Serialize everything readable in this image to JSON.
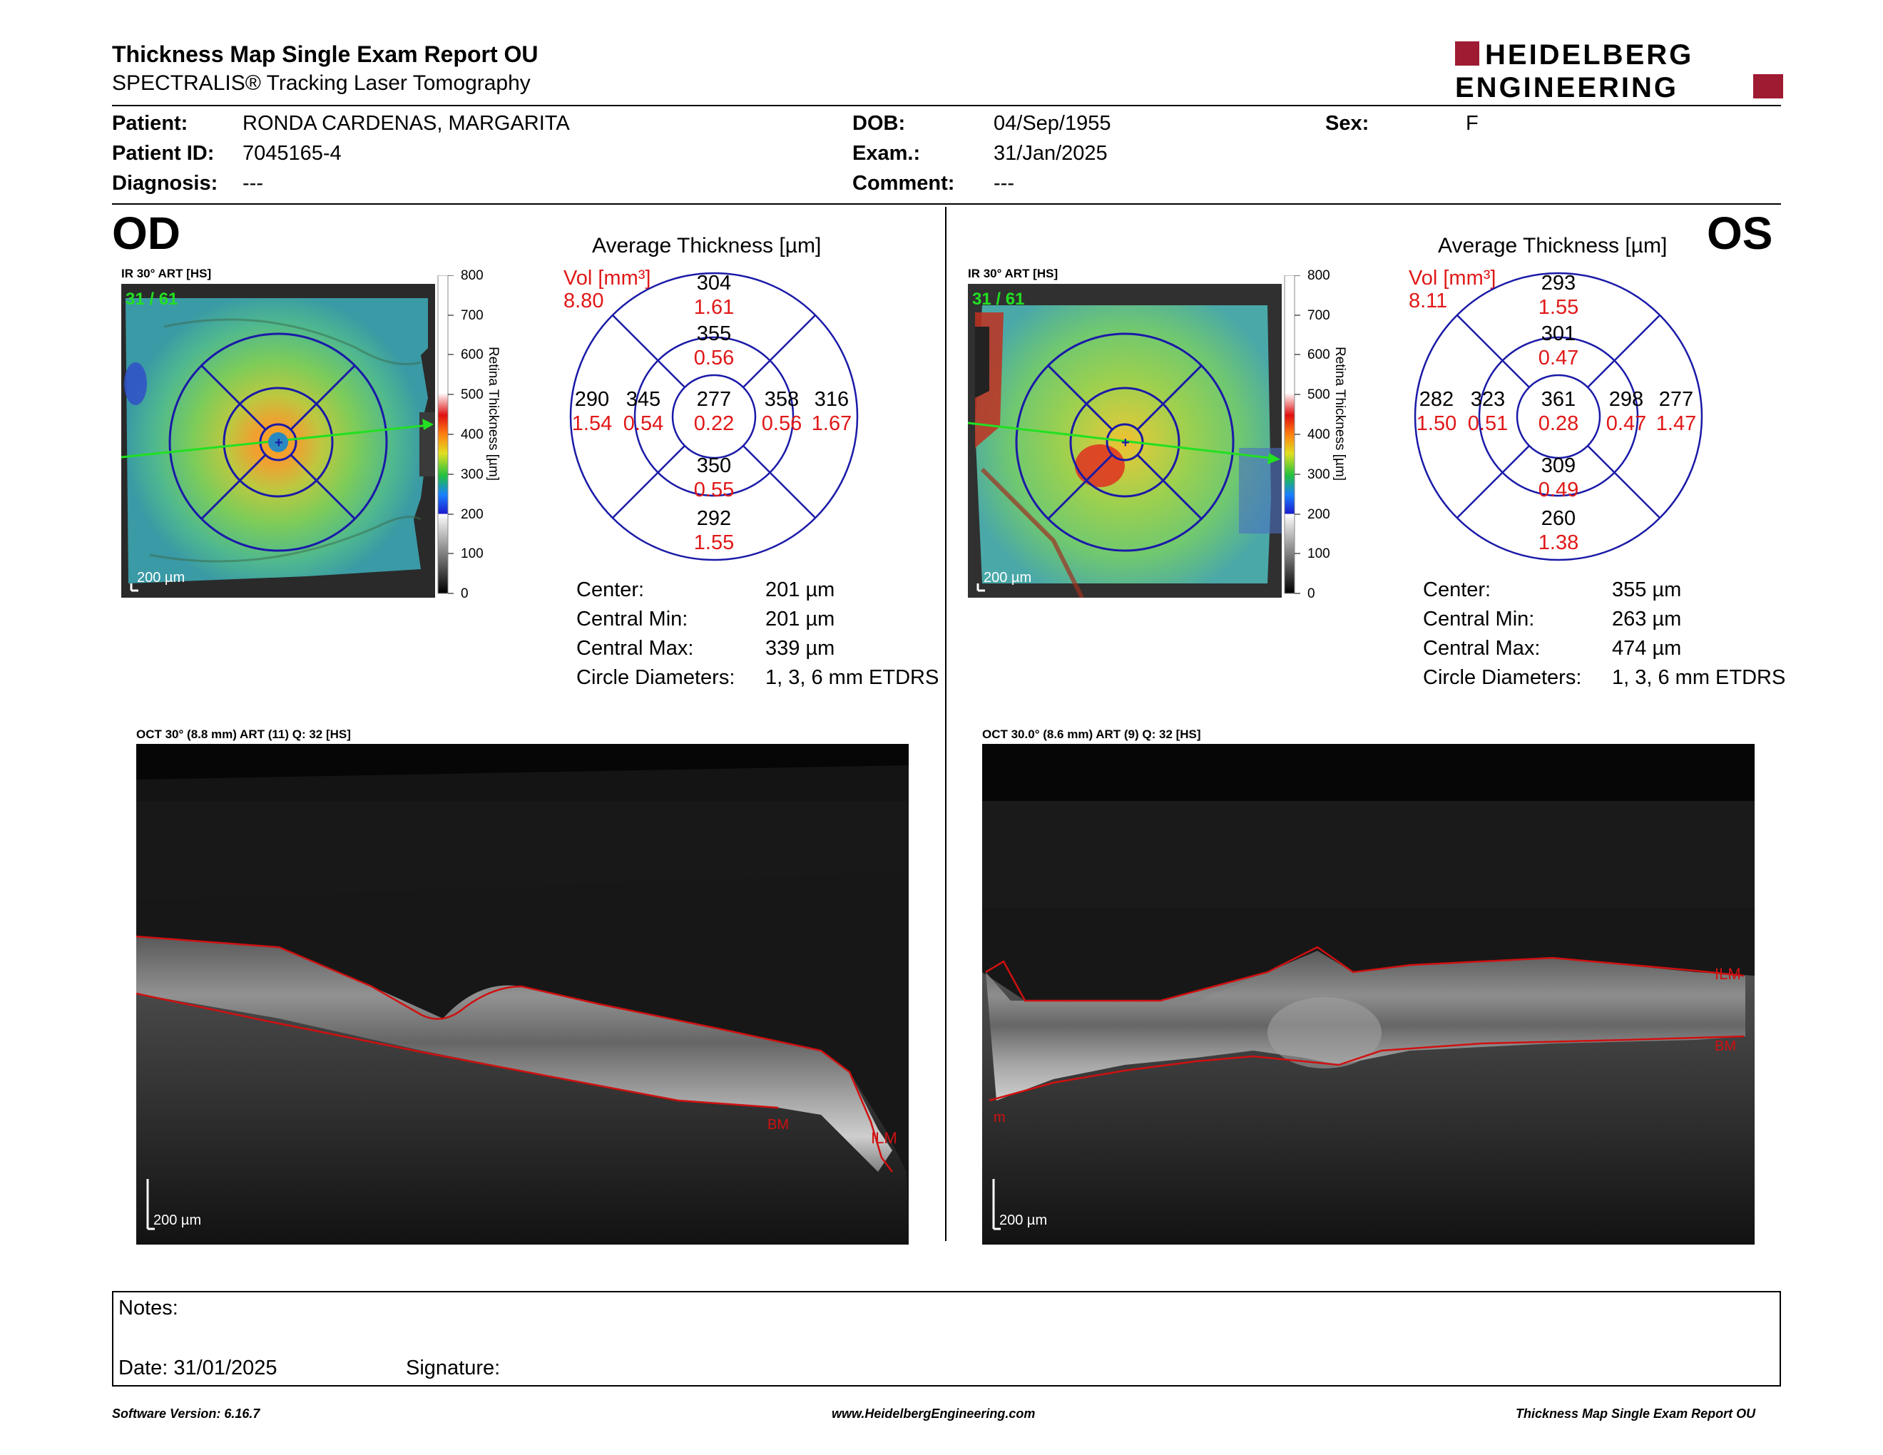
{
  "report": {
    "title": "Thickness Map Single Exam Report OU",
    "subtitle": "SPECTRALIS® Tracking Laser Tomography",
    "logo_line1": "HEIDELBERG",
    "logo_line2": "ENGINEERING"
  },
  "patient": {
    "patient_label": "Patient:",
    "patient_value": "RONDA CARDENAS, MARGARITA",
    "id_label": "Patient ID:",
    "id_value": "7045165-4",
    "diagnosis_label": "Diagnosis:",
    "diagnosis_value": "---",
    "dob_label": "DOB:",
    "dob_value": "04/Sep/1955",
    "exam_label": "Exam.:",
    "exam_value": "31/Jan/2025",
    "comment_label": "Comment:",
    "comment_value": "---",
    "sex_label": "Sex:",
    "sex_value": "F"
  },
  "colorbar": {
    "ticks": [
      "800",
      "700",
      "600",
      "500",
      "400",
      "300",
      "200",
      "100",
      "0"
    ],
    "label": "Retina  Thickness [µm]"
  },
  "od": {
    "eye": "OD",
    "fundus_caption": "IR 30° ART [HS]",
    "frame_counter": "31 / 61",
    "scale": "200 µm",
    "avg_title": "Average Thickness [µm]",
    "vol_label": "Vol [mm³]",
    "vol_value": "8.80",
    "sectors": {
      "outer_top": [
        "304",
        "1.61"
      ],
      "inner_top": [
        "355",
        "0.56"
      ],
      "outer_left": [
        "290",
        "1.54"
      ],
      "inner_left": [
        "345",
        "0.54"
      ],
      "center": [
        "277",
        "0.22"
      ],
      "inner_right": [
        "358",
        "0.56"
      ],
      "outer_right": [
        "316",
        "1.67"
      ],
      "inner_bottom": [
        "350",
        "0.55"
      ],
      "outer_bottom": [
        "292",
        "1.55"
      ]
    },
    "stats": [
      {
        "label": "Center:",
        "value": "201 µm"
      },
      {
        "label": "Central Min:",
        "value": "201 µm"
      },
      {
        "label": "Central Max:",
        "value": "339 µm"
      },
      {
        "label": "Circle Diameters:",
        "value": "1, 3, 6 mm ETDRS"
      }
    ],
    "oct_caption": "OCT 30° (8.8 mm) ART (11) Q: 32 [HS]",
    "oct_scale": "200 µm",
    "oct_label_bm": "BM",
    "oct_label_ilm": "ILM"
  },
  "os": {
    "eye": "OS",
    "fundus_caption": "IR 30° ART [HS]",
    "frame_counter": "31 / 61",
    "scale": "200 µm",
    "avg_title": "Average Thickness [µm]",
    "vol_label": "Vol [mm³]",
    "vol_value": "8.11",
    "sectors": {
      "outer_top": [
        "293",
        "1.55"
      ],
      "inner_top": [
        "301",
        "0.47"
      ],
      "outer_left": [
        "282",
        "1.50"
      ],
      "inner_left": [
        "323",
        "0.51"
      ],
      "center": [
        "361",
        "0.28"
      ],
      "inner_right": [
        "298",
        "0.47"
      ],
      "outer_right": [
        "277",
        "1.47"
      ],
      "inner_bottom": [
        "309",
        "0.49"
      ],
      "outer_bottom": [
        "260",
        "1.38"
      ]
    },
    "stats": [
      {
        "label": "Center:",
        "value": "355 µm"
      },
      {
        "label": "Central Min:",
        "value": "263 µm"
      },
      {
        "label": "Central Max:",
        "value": "474 µm"
      },
      {
        "label": "Circle Diameters:",
        "value": "1, 3, 6 mm ETDRS"
      }
    ],
    "oct_caption": "OCT 30.0° (8.6 mm) ART (9) Q: 32 [HS]",
    "oct_scale": "200 µm",
    "oct_label_ilm": "ILM",
    "oct_label_bm": "BM",
    "oct_label_m": "m"
  },
  "notes": {
    "notes_label": "Notes:",
    "date_label": "Date: 31/01/2025",
    "signature_label": "Signature:"
  },
  "footer": {
    "software": "Software Version: 6.16.7",
    "website": "www.HeidelbergEngineering.com",
    "report_name": "Thickness Map Single Exam Report OU"
  },
  "colors": {
    "vol_red": "#e01818",
    "grid_blue": "#1a1aa8",
    "logo_red": "#9e1b32",
    "scan_green": "#22e022",
    "segmentation_red": "#d01010"
  }
}
